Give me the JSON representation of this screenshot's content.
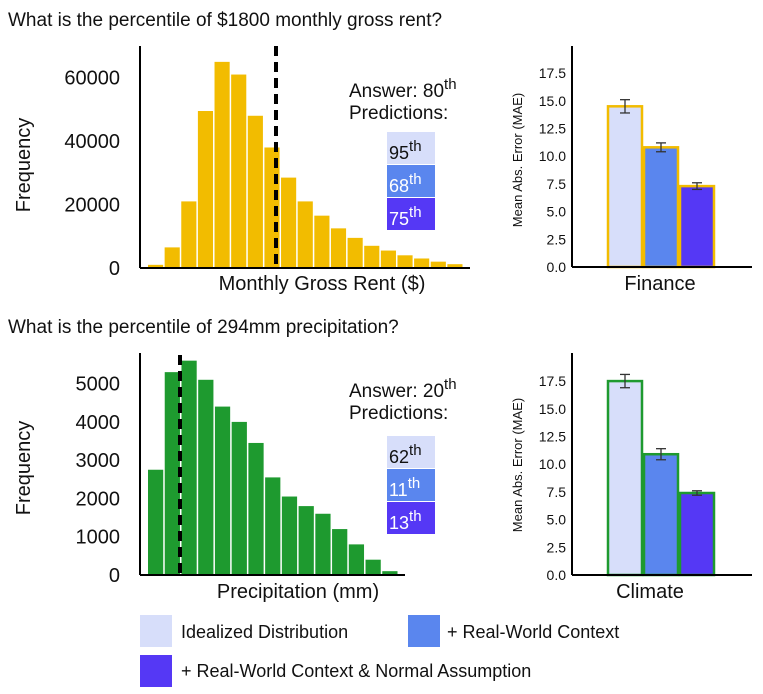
{
  "colors": {
    "finance_hist": "#f2bc00",
    "climate_hist": "#1e9a2f",
    "idealized": "#d7defa",
    "real_world": "#5a86ee",
    "normal": "#5538f5",
    "dashed": "#000000"
  },
  "legend": {
    "items": [
      {
        "label": "Idealized Distribution",
        "color": "#d7defa"
      },
      {
        "label": "+ Real-World Context",
        "color": "#5a86ee"
      },
      {
        "label": "+ Real-World Context & Normal Assumption",
        "color": "#5538f5"
      }
    ]
  },
  "panels": [
    {
      "question": "What is the percentile of $1800 monthly gross rent?",
      "answer": "Answer: 80",
      "answer_sup": "th",
      "predictions_label": "Predictions:",
      "predictions": [
        {
          "value": "95",
          "sup": "th",
          "color": "#d7defa",
          "text_color": "#111111"
        },
        {
          "value": "68",
          "sup": "th",
          "color": "#5a86ee",
          "text_color": "#ffffff"
        },
        {
          "value": "75",
          "sup": "th",
          "color": "#5538f5",
          "text_color": "#ffffff"
        }
      ]
    },
    {
      "question": "What is the percentile of 294mm precipitation?",
      "answer": "Answer: 20",
      "answer_sup": "th",
      "predictions_label": "Predictions:",
      "predictions": [
        {
          "value": "62",
          "sup": "th",
          "color": "#d7defa",
          "text_color": "#111111"
        },
        {
          "value": "11",
          "sup": "th",
          "color": "#5a86ee",
          "text_color": "#ffffff"
        },
        {
          "value": "13",
          "sup": "th",
          "color": "#5538f5",
          "text_color": "#ffffff"
        }
      ]
    }
  ],
  "chart_data": [
    {
      "id": "rent_hist",
      "type": "bar",
      "xlabel": "Monthly Gross Rent ($)",
      "ylabel": "Frequency",
      "ylim": [
        0,
        70000
      ],
      "yticks": [
        "0",
        "20000",
        "40000",
        "60000"
      ],
      "ytick_values": [
        0,
        20000,
        40000,
        60000
      ],
      "values": [
        1000,
        6500,
        21000,
        49500,
        65000,
        61000,
        48000,
        38000,
        28500,
        21000,
        16500,
        12500,
        9500,
        7000,
        5500,
        4000,
        3000,
        2000,
        1200
      ],
      "color": "#f2bc00",
      "marker_value": 1800,
      "marker_label": "$1800"
    },
    {
      "id": "finance_mae",
      "type": "bar",
      "xlabel": "Finance",
      "ylabel": "Mean Abs. Error (MAE)",
      "ylim": [
        0,
        18.5
      ],
      "yticks": [
        "0.0",
        "2.5",
        "5.0",
        "7.5",
        "10.0",
        "12.5",
        "15.0",
        "17.5"
      ],
      "ytick_values": [
        0,
        2.5,
        5,
        7.5,
        10,
        12.5,
        15,
        17.5
      ],
      "categories": [
        "Idealized Distribution",
        "+ Real-World Context",
        "+ Real-World Context & Normal Assumption"
      ],
      "values": [
        14.5,
        10.8,
        7.3
      ],
      "errors": [
        0.6,
        0.4,
        0.3
      ],
      "colors": [
        "#d7defa",
        "#5a86ee",
        "#5538f5"
      ],
      "border": "#f2bc00"
    },
    {
      "id": "precip_hist",
      "type": "bar",
      "xlabel": "Precipitation (mm)",
      "ylabel": "Frequency",
      "ylim": [
        0,
        5800
      ],
      "yticks": [
        "0",
        "1000",
        "2000",
        "3000",
        "4000",
        "5000"
      ],
      "ytick_values": [
        0,
        1000,
        2000,
        3000,
        4000,
        5000
      ],
      "values": [
        2750,
        5300,
        5600,
        5100,
        4400,
        4000,
        3450,
        2550,
        2050,
        1800,
        1600,
        1200,
        800,
        400,
        100
      ],
      "color": "#1e9a2f",
      "marker_value": 294,
      "marker_label": "294mm"
    },
    {
      "id": "climate_mae",
      "type": "bar",
      "xlabel": "Climate",
      "ylabel": "Mean Abs. Error (MAE)",
      "ylim": [
        0,
        18.5
      ],
      "yticks": [
        "0.0",
        "2.5",
        "5.0",
        "7.5",
        "10.0",
        "12.5",
        "15.0",
        "17.5"
      ],
      "ytick_values": [
        0,
        2.5,
        5,
        7.5,
        10,
        12.5,
        15,
        17.5
      ],
      "categories": [
        "Idealized Distribution",
        "+ Real-World Context",
        "+ Real-World Context & Normal Assumption"
      ],
      "values": [
        17.5,
        10.9,
        7.4
      ],
      "errors": [
        0.6,
        0.5,
        0.2
      ],
      "colors": [
        "#d7defa",
        "#5a86ee",
        "#5538f5"
      ],
      "border": "#1e9a2f"
    }
  ]
}
